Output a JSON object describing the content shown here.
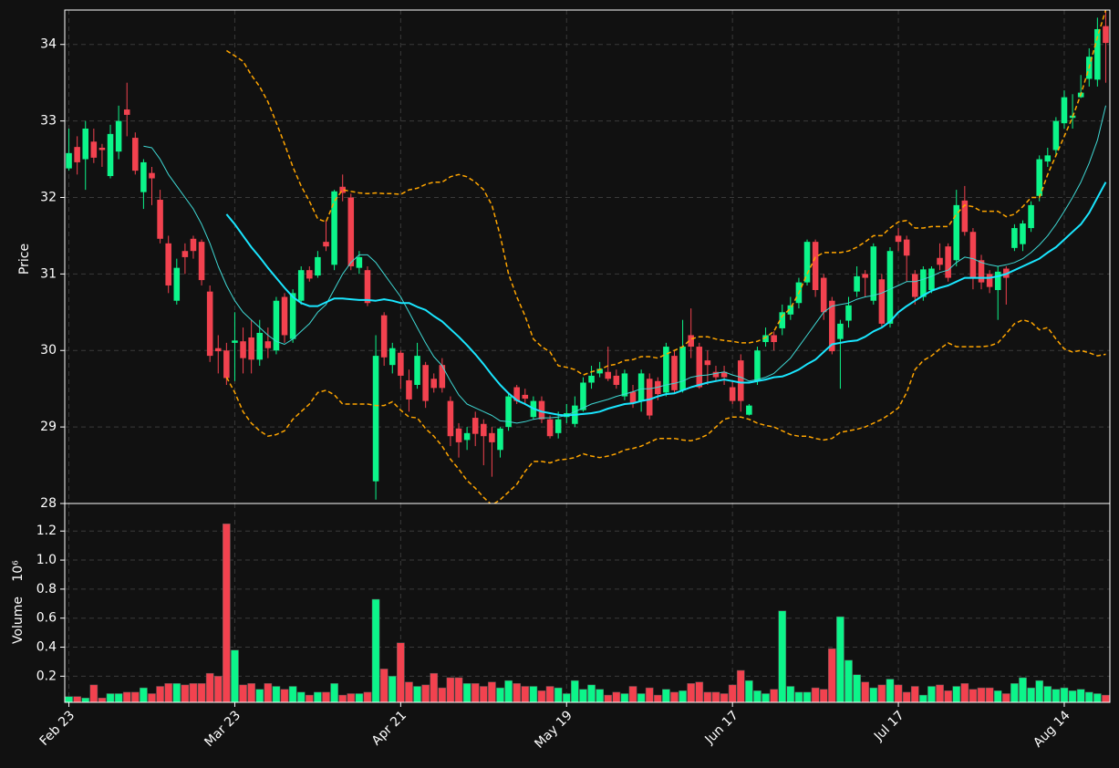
{
  "chart_data": {
    "type": "candlestick",
    "ylabel": "Price",
    "up_color": "#0cf58a",
    "down_color": "#f2424f",
    "grid": true,
    "xlim": [
      -0.5,
      125.5
    ],
    "ylim": [
      28,
      34.45
    ],
    "yticks": [
      28,
      29,
      30,
      31,
      32,
      33,
      34
    ],
    "categories": [
      "Feb 23",
      null,
      null,
      null,
      null,
      null,
      null,
      null,
      null,
      null,
      null,
      null,
      null,
      null,
      null,
      null,
      null,
      null,
      null,
      null,
      "Mar 23",
      null,
      null,
      null,
      null,
      null,
      null,
      null,
      null,
      null,
      null,
      null,
      null,
      null,
      null,
      null,
      null,
      null,
      null,
      null,
      "Apr 21",
      null,
      null,
      null,
      null,
      null,
      null,
      null,
      null,
      null,
      null,
      null,
      null,
      null,
      null,
      null,
      null,
      null,
      null,
      null,
      "May 19",
      null,
      null,
      null,
      null,
      null,
      null,
      null,
      null,
      null,
      null,
      null,
      null,
      null,
      null,
      null,
      null,
      null,
      null,
      null,
      "Jun 17",
      null,
      null,
      null,
      null,
      null,
      null,
      null,
      null,
      null,
      null,
      null,
      null,
      null,
      null,
      null,
      null,
      null,
      null,
      null,
      "Jul 17",
      null,
      null,
      null,
      null,
      null,
      null,
      null,
      null,
      null,
      null,
      null,
      null,
      null,
      null,
      null,
      null,
      null,
      null,
      null,
      "Aug 14",
      null,
      null,
      null,
      null,
      null
    ],
    "open": [
      32.38,
      32.66,
      32.5,
      32.73,
      32.65,
      32.28,
      32.6,
      33.15,
      32.78,
      32.07,
      32.32,
      31.97,
      31.4,
      30.65,
      31.3,
      31.46,
      31.42,
      30.77,
      30.03,
      30.0,
      30.1,
      30.12,
      30.17,
      29.88,
      30.12,
      30.0,
      30.7,
      30.15,
      30.65,
      31.05,
      30.98,
      31.42,
      31.12,
      32.14,
      32.0,
      31.08,
      31.05,
      28.29,
      30.46,
      29.81,
      29.97,
      29.61,
      29.55,
      29.81,
      29.63,
      29.81,
      29.34,
      28.98,
      28.83,
      29.12,
      29.04,
      28.92,
      28.7,
      29.0,
      29.52,
      29.42,
      29.13,
      29.34,
      29.1,
      28.92,
      29.13,
      29.04,
      29.22,
      29.58,
      29.7,
      29.72,
      29.67,
      29.4,
      29.46,
      29.34,
      29.63,
      29.6,
      29.45,
      29.93,
      29.48,
      30.2,
      30.05,
      29.87,
      29.72,
      29.72,
      29.52,
      29.87,
      29.16,
      29.6,
      30.11,
      30.2,
      30.29,
      30.47,
      30.62,
      30.89,
      31.42,
      30.95,
      30.65,
      30.15,
      30.39,
      30.77,
      31.0,
      30.65,
      30.93,
      30.35,
      31.5,
      31.45,
      31.0,
      30.7,
      30.79,
      31.21,
      31.36,
      31.18,
      31.96,
      31.55,
      31.18,
      31.0,
      30.79,
      31.07,
      31.34,
      31.39,
      31.6,
      32.02,
      32.47,
      32.62,
      32.97,
      33.04,
      33.31,
      33.55,
      33.54,
      34.24
    ],
    "high": [
      32.9,
      32.8,
      33.0,
      32.9,
      32.7,
      32.95,
      33.2,
      33.5,
      32.85,
      32.5,
      32.4,
      32.1,
      31.5,
      31.2,
      31.4,
      31.5,
      31.45,
      30.85,
      30.2,
      30.1,
      30.5,
      30.3,
      30.4,
      30.4,
      30.3,
      30.7,
      30.75,
      30.8,
      31.1,
      31.1,
      31.3,
      31.7,
      32.1,
      32.3,
      32.05,
      31.3,
      31.1,
      30.2,
      30.5,
      30.1,
      30.0,
      29.75,
      30.1,
      29.85,
      29.7,
      29.9,
      29.4,
      29.05,
      29.0,
      29.2,
      29.1,
      29.0,
      29.0,
      29.45,
      29.55,
      29.5,
      29.4,
      29.4,
      29.15,
      29.2,
      29.3,
      29.4,
      29.65,
      29.8,
      29.85,
      30.05,
      29.75,
      29.75,
      29.55,
      29.75,
      29.7,
      29.65,
      30.1,
      30.0,
      30.4,
      30.55,
      30.1,
      30.0,
      29.8,
      29.8,
      29.6,
      29.95,
      29.3,
      30.05,
      30.3,
      30.25,
      30.6,
      30.7,
      30.95,
      31.45,
      31.45,
      31.0,
      30.7,
      30.4,
      30.7,
      31.1,
      31.05,
      31.4,
      31.0,
      31.35,
      31.6,
      31.5,
      31.05,
      31.1,
      31.1,
      31.4,
      31.4,
      32.1,
      32.15,
      31.6,
      31.25,
      31.05,
      31.1,
      31.1,
      31.65,
      31.7,
      31.95,
      32.55,
      32.65,
      33.05,
      33.4,
      33.35,
      33.6,
      33.95,
      34.35,
      34.45
    ],
    "low": [
      32.35,
      32.3,
      32.1,
      32.45,
      32.4,
      32.25,
      32.5,
      32.8,
      32.3,
      31.85,
      31.9,
      31.4,
      30.75,
      30.6,
      31.0,
      31.2,
      30.85,
      29.85,
      29.7,
      29.55,
      29.6,
      29.7,
      29.7,
      29.8,
      29.9,
      29.95,
      30.1,
      30.1,
      30.6,
      30.9,
      30.95,
      31.3,
      31.05,
      31.95,
      31.05,
      31.0,
      30.58,
      28.05,
      29.8,
      29.7,
      29.5,
      29.2,
      29.5,
      29.25,
      29.45,
      29.45,
      28.75,
      28.6,
      28.7,
      28.75,
      28.5,
      28.35,
      28.6,
      28.95,
      29.3,
      29.3,
      29.1,
      29.05,
      28.85,
      28.85,
      29.05,
      29.0,
      29.2,
      29.5,
      29.65,
      29.6,
      29.5,
      29.35,
      29.25,
      29.2,
      29.1,
      29.35,
      29.4,
      29.45,
      29.45,
      29.9,
      29.5,
      29.55,
      29.6,
      29.55,
      29.3,
      29.2,
      29.15,
      29.55,
      30.05,
      30.0,
      30.2,
      30.4,
      30.55,
      30.85,
      30.7,
      30.4,
      29.95,
      29.5,
      30.3,
      30.7,
      30.7,
      30.6,
      30.3,
      30.3,
      31.3,
      30.9,
      30.6,
      30.65,
      30.75,
      31.05,
      30.9,
      31.1,
      31.5,
      30.8,
      30.8,
      30.75,
      30.4,
      30.6,
      31.3,
      31.3,
      31.55,
      31.95,
      32.4,
      32.55,
      32.9,
      32.9,
      33.3,
      33.45,
      33.45,
      33.5
    ],
    "close": [
      32.58,
      32.46,
      32.9,
      32.52,
      32.62,
      32.83,
      33.0,
      33.08,
      32.35,
      32.46,
      32.25,
      31.46,
      30.85,
      31.08,
      31.22,
      31.3,
      30.92,
      29.93,
      29.99,
      29.64,
      30.13,
      29.9,
      29.88,
      30.23,
      30.03,
      30.65,
      30.2,
      30.75,
      31.05,
      30.94,
      31.22,
      31.36,
      32.08,
      32.06,
      31.1,
      31.22,
      30.62,
      29.93,
      29.91,
      30.03,
      29.67,
      29.36,
      29.93,
      29.34,
      29.51,
      29.51,
      28.88,
      28.8,
      28.92,
      28.91,
      28.88,
      28.8,
      28.98,
      29.4,
      29.34,
      29.37,
      29.34,
      29.1,
      28.88,
      29.1,
      29.18,
      29.28,
      29.58,
      29.67,
      29.76,
      29.63,
      29.55,
      29.7,
      29.31,
      29.7,
      29.15,
      29.43,
      30.05,
      29.48,
      30.05,
      30.05,
      29.52,
      29.81,
      29.65,
      29.65,
      29.34,
      29.34,
      29.28,
      30.0,
      30.2,
      30.11,
      30.5,
      30.59,
      30.89,
      31.42,
      30.79,
      30.5,
      29.99,
      30.35,
      30.59,
      30.97,
      30.95,
      31.36,
      30.35,
      31.3,
      31.42,
      31.24,
      30.7,
      31.06,
      31.07,
      31.12,
      30.95,
      31.9,
      31.55,
      30.95,
      30.89,
      30.83,
      31.03,
      30.95,
      31.6,
      31.66,
      31.9,
      32.5,
      32.55,
      33.0,
      33.31,
      33.07,
      33.37,
      33.84,
      34.2,
      34.02
    ],
    "series": [
      {
        "color": "#3fd8d4",
        "linewidth": 1,
        "dashed": false,
        "values": [
          null,
          null,
          null,
          null,
          null,
          null,
          null,
          null,
          null,
          32.67,
          32.65,
          32.5,
          32.3,
          32.15,
          32.0,
          31.85,
          31.65,
          31.4,
          31.1,
          30.85,
          30.65,
          30.5,
          30.4,
          30.3,
          30.2,
          30.12,
          30.08,
          30.15,
          30.25,
          30.35,
          30.5,
          30.6,
          30.8,
          31.0,
          31.15,
          31.25,
          31.25,
          31.15,
          31.0,
          30.85,
          30.7,
          30.5,
          30.3,
          30.1,
          29.92,
          29.8,
          29.6,
          29.42,
          29.3,
          29.25,
          29.2,
          29.15,
          29.08,
          29.07,
          29.05,
          29.07,
          29.1,
          29.12,
          29.12,
          29.13,
          29.15,
          29.2,
          29.25,
          29.3,
          29.33,
          29.36,
          29.4,
          29.43,
          29.46,
          29.5,
          29.5,
          29.52,
          29.55,
          29.57,
          29.6,
          29.65,
          29.67,
          29.68,
          29.7,
          29.72,
          29.68,
          29.65,
          29.6,
          29.62,
          29.65,
          29.7,
          29.8,
          29.9,
          30.05,
          30.2,
          30.35,
          30.5,
          30.58,
          30.6,
          30.62,
          30.67,
          30.7,
          30.72,
          30.75,
          30.8,
          30.85,
          30.9,
          30.9,
          30.93,
          30.97,
          31.02,
          31.05,
          31.15,
          31.22,
          31.2,
          31.15,
          31.12,
          31.1,
          31.12,
          31.15,
          31.2,
          31.28,
          31.38,
          31.5,
          31.65,
          31.82,
          32.0,
          32.2,
          32.45,
          32.75,
          33.2
        ]
      },
      {
        "color": "#1ae6ff",
        "linewidth": 2,
        "dashed": false,
        "values": [
          null,
          null,
          null,
          null,
          null,
          null,
          null,
          null,
          null,
          null,
          null,
          null,
          null,
          null,
          null,
          null,
          null,
          null,
          null,
          31.78,
          31.65,
          31.5,
          31.35,
          31.22,
          31.08,
          30.95,
          30.82,
          30.7,
          30.62,
          30.58,
          30.58,
          30.63,
          30.68,
          30.68,
          30.67,
          30.66,
          30.66,
          30.65,
          30.67,
          30.65,
          30.62,
          30.62,
          30.57,
          30.53,
          30.45,
          30.38,
          30.28,
          30.18,
          30.07,
          29.95,
          29.82,
          29.68,
          29.55,
          29.44,
          29.35,
          29.3,
          29.24,
          29.2,
          29.18,
          29.16,
          29.15,
          29.16,
          29.17,
          29.18,
          29.2,
          29.24,
          29.27,
          29.3,
          29.31,
          29.34,
          29.36,
          29.4,
          29.43,
          29.44,
          29.48,
          29.52,
          29.55,
          29.58,
          29.6,
          29.62,
          29.6,
          29.58,
          29.58,
          29.6,
          29.62,
          29.65,
          29.66,
          29.7,
          29.75,
          29.82,
          29.88,
          29.98,
          30.08,
          30.1,
          30.12,
          30.13,
          30.18,
          30.25,
          30.3,
          30.38,
          30.5,
          30.58,
          30.65,
          30.72,
          30.78,
          30.82,
          30.85,
          30.9,
          30.95,
          30.95,
          30.95,
          30.95,
          30.97,
          31.0,
          31.05,
          31.1,
          31.15,
          31.2,
          31.28,
          31.35,
          31.45,
          31.55,
          31.65,
          31.8,
          32.0,
          32.2
        ]
      },
      {
        "color": "#ffa500",
        "linewidth": 1.5,
        "dashed": true,
        "values": [
          null,
          null,
          null,
          null,
          null,
          null,
          null,
          null,
          null,
          null,
          null,
          null,
          null,
          null,
          null,
          null,
          null,
          null,
          null,
          33.92,
          33.85,
          33.78,
          33.6,
          33.45,
          33.25,
          32.98,
          32.7,
          32.4,
          32.15,
          31.95,
          31.72,
          31.68,
          31.95,
          32.1,
          32.08,
          32.06,
          32.05,
          32.06,
          32.05,
          32.05,
          32.04,
          32.1,
          32.12,
          32.17,
          32.2,
          32.2,
          32.27,
          32.3,
          32.27,
          32.2,
          32.1,
          31.9,
          31.5,
          31.0,
          30.7,
          30.45,
          30.15,
          30.05,
          29.98,
          29.8,
          29.78,
          29.75,
          29.68,
          29.72,
          29.75,
          29.8,
          29.82,
          29.87,
          29.88,
          29.92,
          29.92,
          29.9,
          29.95,
          30.0,
          30.05,
          30.15,
          30.18,
          30.18,
          30.15,
          30.13,
          30.12,
          30.1,
          30.1,
          30.12,
          30.17,
          30.25,
          30.45,
          30.55,
          30.75,
          31.0,
          31.22,
          31.28,
          31.28,
          31.28,
          31.3,
          31.35,
          31.42,
          31.5,
          31.5,
          31.6,
          31.68,
          31.7,
          31.6,
          31.6,
          31.62,
          31.62,
          31.62,
          31.78,
          31.9,
          31.88,
          31.82,
          31.82,
          31.82,
          31.75,
          31.78,
          31.88,
          32.0,
          32.0,
          32.3,
          32.55,
          32.8,
          33.05,
          33.35,
          33.7,
          34.1,
          34.45
        ]
      },
      {
        "color": "#ffa500",
        "linewidth": 1.5,
        "dashed": true,
        "values": [
          null,
          null,
          null,
          null,
          null,
          null,
          null,
          null,
          null,
          null,
          null,
          null,
          null,
          null,
          null,
          null,
          null,
          null,
          null,
          29.65,
          29.45,
          29.2,
          29.05,
          28.95,
          28.88,
          28.9,
          28.95,
          29.1,
          29.2,
          29.3,
          29.45,
          29.48,
          29.42,
          29.3,
          29.3,
          29.3,
          29.3,
          29.28,
          29.28,
          29.33,
          29.22,
          29.13,
          29.12,
          28.98,
          28.88,
          28.75,
          28.58,
          28.45,
          28.3,
          28.2,
          28.08,
          27.98,
          28.05,
          28.15,
          28.25,
          28.42,
          28.55,
          28.55,
          28.53,
          28.57,
          28.58,
          28.6,
          28.65,
          28.62,
          28.6,
          28.62,
          28.65,
          28.7,
          28.72,
          28.75,
          28.8,
          28.85,
          28.85,
          28.85,
          28.83,
          28.82,
          28.85,
          28.9,
          29.0,
          29.1,
          29.13,
          29.13,
          29.1,
          29.05,
          29.02,
          29.0,
          28.95,
          28.9,
          28.88,
          28.88,
          28.85,
          28.83,
          28.85,
          28.93,
          28.95,
          28.97,
          29.0,
          29.05,
          29.1,
          29.17,
          29.25,
          29.45,
          29.75,
          29.87,
          29.93,
          30.02,
          30.1,
          30.05,
          30.05,
          30.05,
          30.05,
          30.06,
          30.1,
          30.22,
          30.35,
          30.4,
          30.37,
          30.27,
          30.3,
          30.15,
          30.02,
          29.98,
          30.0,
          29.97,
          29.93,
          29.95
        ]
      }
    ],
    "volume": {
      "ylabel": "Volume",
      "offset_label": "10⁶",
      "ylim": [
        0.02,
        1.39
      ],
      "yticks": [
        0.2,
        0.4,
        0.6,
        0.8,
        {
          "value": 1,
          "label": "1.0"
        },
        1.2
      ],
      "values": [
        0.06,
        0.06,
        0.05,
        0.14,
        0.05,
        0.08,
        0.08,
        0.09,
        0.09,
        0.12,
        0.08,
        0.13,
        0.15,
        0.15,
        0.14,
        0.15,
        0.15,
        0.22,
        0.2,
        1.25,
        0.38,
        0.14,
        0.15,
        0.11,
        0.15,
        0.13,
        0.11,
        0.13,
        0.09,
        0.07,
        0.09,
        0.09,
        0.15,
        0.07,
        0.08,
        0.08,
        0.09,
        0.73,
        0.25,
        0.2,
        0.43,
        0.16,
        0.13,
        0.14,
        0.22,
        0.12,
        0.19,
        0.19,
        0.15,
        0.15,
        0.13,
        0.16,
        0.12,
        0.17,
        0.15,
        0.13,
        0.13,
        0.1,
        0.13,
        0.12,
        0.08,
        0.17,
        0.11,
        0.14,
        0.11,
        0.07,
        0.09,
        0.08,
        0.13,
        0.08,
        0.12,
        0.07,
        0.11,
        0.09,
        0.1,
        0.15,
        0.16,
        0.09,
        0.09,
        0.08,
        0.14,
        0.24,
        0.17,
        0.1,
        0.08,
        0.11,
        0.65,
        0.13,
        0.09,
        0.09,
        0.12,
        0.11,
        0.39,
        0.61,
        0.31,
        0.21,
        0.16,
        0.12,
        0.14,
        0.18,
        0.14,
        0.09,
        0.13,
        0.07,
        0.13,
        0.14,
        0.1,
        0.13,
        0.15,
        0.11,
        0.12,
        0.12,
        0.1,
        0.08,
        0.15,
        0.19,
        0.12,
        0.17,
        0.13,
        0.11,
        0.12,
        0.1,
        0.11,
        0.09,
        0.08,
        0.07
      ]
    }
  }
}
